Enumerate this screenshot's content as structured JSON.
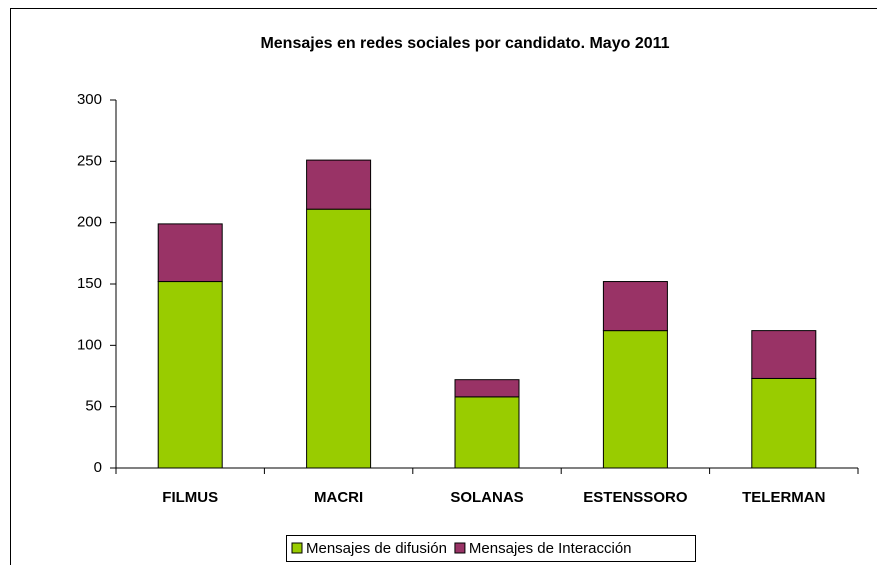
{
  "chart_data": {
    "type": "stacked_bar",
    "title": "Mensajes en redes sociales por candidato. Mayo 2011",
    "categories": [
      "FILMUS",
      "MACRI",
      "SOLANAS",
      "ESTENSSORO",
      "TELERMAN"
    ],
    "series": [
      {
        "name": "Mensajes de difusión",
        "color": "#99cc00",
        "values": [
          152,
          211,
          58,
          112,
          73
        ]
      },
      {
        "name": "Mensajes de Interacción",
        "color": "#993366",
        "values": [
          47,
          40,
          14,
          40,
          39
        ]
      }
    ],
    "ylim": [
      0,
      300
    ],
    "yticks": [
      0,
      50,
      100,
      150,
      200,
      250,
      300
    ],
    "grid": false,
    "legend": "bottom"
  }
}
